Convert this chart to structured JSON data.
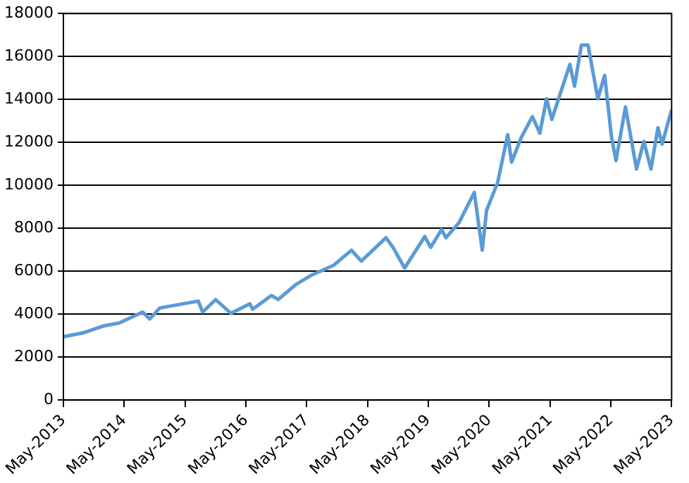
{
  "chart_data": {
    "type": "line",
    "x": [
      "2013-05-01",
      "2013-09-01",
      "2014-01-01",
      "2014-04-01",
      "2014-08-20",
      "2014-10-01",
      "2014-12-01",
      "2015-07-20",
      "2015-08-15",
      "2015-11-01",
      "2016-02-01",
      "2016-05-25",
      "2016-06-10",
      "2016-10-01",
      "2016-11-10",
      "2017-02-25",
      "2017-06-01",
      "2017-10-10",
      "2018-01-25",
      "2018-03-25",
      "2018-08-20",
      "2018-10-01",
      "2018-12-10",
      "2019-04-10",
      "2019-05-15",
      "2019-07-20",
      "2019-08-15",
      "2019-11-01",
      "2020-02-01",
      "2020-03-20",
      "2020-04-15",
      "2020-06-20",
      "2020-08-20",
      "2020-09-12",
      "2020-11-10",
      "2021-01-15",
      "2021-03-01",
      "2021-04-10",
      "2021-05-12",
      "2021-08-28",
      "2021-09-25",
      "2021-11-05",
      "2021-12-15",
      "2022-02-12",
      "2022-03-25",
      "2022-05-05",
      "2022-06-01",
      "2022-07-28",
      "2022-10-02",
      "2022-11-15",
      "2022-12-28",
      "2023-02-08",
      "2023-03-05",
      "2023-05-01"
    ],
    "series": [
      {
        "color": "#5b9bd5",
        "values": [
          2950,
          3140,
          3460,
          3590,
          4100,
          3780,
          4290,
          4610,
          4100,
          4680,
          4040,
          4480,
          4230,
          4870,
          4680,
          5380,
          5830,
          6280,
          6980,
          6470,
          7560,
          7110,
          6150,
          7620,
          7110,
          7940,
          7560,
          8260,
          9670,
          6980,
          8840,
          10120,
          12360,
          11080,
          12240,
          13200,
          12430,
          14030,
          13070,
          15630,
          14610,
          16530,
          16530,
          14030,
          15120,
          12240,
          11150,
          13650,
          10760,
          12040,
          10760,
          12680,
          11920,
          13520
        ]
      }
    ],
    "xlim": [
      "2013-05-01",
      "2023-05-01"
    ],
    "xticks": [
      {
        "value": "2013-05-01",
        "label": "May-2013"
      },
      {
        "value": "2014-05-01",
        "label": "May-2014"
      },
      {
        "value": "2015-05-01",
        "label": "May-2015"
      },
      {
        "value": "2016-05-01",
        "label": "May-2016"
      },
      {
        "value": "2017-05-01",
        "label": "May-2017"
      },
      {
        "value": "2018-05-01",
        "label": "May-2018"
      },
      {
        "value": "2019-05-01",
        "label": "May-2019"
      },
      {
        "value": "2020-05-01",
        "label": "May-2020"
      },
      {
        "value": "2021-05-01",
        "label": "May-2021"
      },
      {
        "value": "2022-05-01",
        "label": "May-2022"
      },
      {
        "value": "2023-05-01",
        "label": "May-2023"
      }
    ],
    "ylim": [
      0,
      18000
    ],
    "yticks": [
      0,
      2000,
      4000,
      6000,
      8000,
      10000,
      12000,
      14000,
      16000,
      18000
    ],
    "grid": "y",
    "legend": false,
    "marker": "none",
    "line_style": "solid"
  }
}
